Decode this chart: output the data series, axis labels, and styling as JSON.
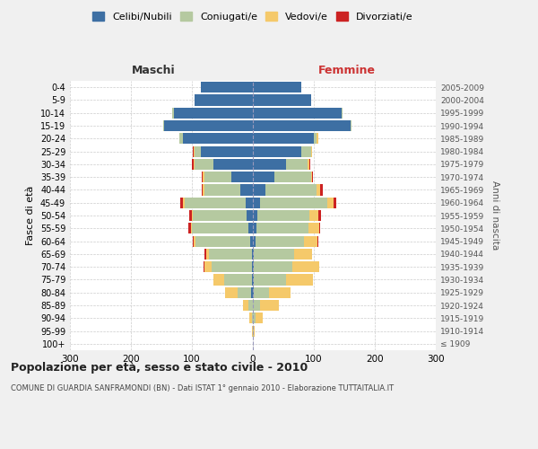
{
  "age_groups": [
    "100+",
    "95-99",
    "90-94",
    "85-89",
    "80-84",
    "75-79",
    "70-74",
    "65-69",
    "60-64",
    "55-59",
    "50-54",
    "45-49",
    "40-44",
    "35-39",
    "30-34",
    "25-29",
    "20-24",
    "15-19",
    "10-14",
    "5-9",
    "0-4"
  ],
  "birth_years": [
    "≤ 1909",
    "1910-1914",
    "1915-1919",
    "1920-1924",
    "1925-1929",
    "1930-1934",
    "1935-1939",
    "1940-1944",
    "1945-1949",
    "1950-1954",
    "1955-1959",
    "1960-1964",
    "1965-1969",
    "1970-1974",
    "1975-1979",
    "1980-1984",
    "1985-1989",
    "1990-1994",
    "1995-1999",
    "2000-2004",
    "2005-2009"
  ],
  "male": {
    "celibi": [
      0,
      0,
      0,
      0,
      3,
      2,
      2,
      2,
      4,
      8,
      10,
      12,
      20,
      35,
      65,
      85,
      115,
      145,
      130,
      95,
      85
    ],
    "coniugati": [
      0,
      0,
      2,
      8,
      22,
      45,
      65,
      70,
      90,
      92,
      88,
      100,
      60,
      45,
      30,
      10,
      5,
      2,
      2,
      0,
      0
    ],
    "vedovi": [
      0,
      1,
      4,
      8,
      20,
      18,
      12,
      5,
      3,
      2,
      2,
      2,
      2,
      2,
      2,
      2,
      0,
      0,
      0,
      0,
      0
    ],
    "divorziati": [
      0,
      0,
      0,
      0,
      0,
      0,
      2,
      2,
      2,
      4,
      4,
      5,
      2,
      2,
      3,
      2,
      0,
      0,
      0,
      0,
      0
    ]
  },
  "female": {
    "nubili": [
      0,
      0,
      0,
      0,
      2,
      2,
      2,
      2,
      4,
      6,
      8,
      12,
      20,
      35,
      55,
      80,
      100,
      160,
      145,
      95,
      80
    ],
    "coniugate": [
      0,
      1,
      4,
      12,
      25,
      52,
      62,
      65,
      80,
      85,
      85,
      110,
      85,
      60,
      35,
      15,
      5,
      2,
      2,
      0,
      0
    ],
    "vedove": [
      0,
      2,
      12,
      30,
      35,
      45,
      45,
      30,
      22,
      18,
      15,
      10,
      5,
      2,
      2,
      2,
      2,
      0,
      0,
      0,
      0
    ],
    "divorziate": [
      0,
      0,
      0,
      0,
      0,
      0,
      0,
      0,
      2,
      2,
      4,
      5,
      5,
      2,
      2,
      0,
      0,
      0,
      0,
      0,
      0
    ]
  },
  "colors": {
    "celibi": "#3d6fa3",
    "coniugati": "#b5c9a0",
    "vedovi": "#f5c96a",
    "divorziati": "#cc2222"
  },
  "xlim": 300,
  "title": "Popolazione per età, sesso e stato civile - 2010",
  "subtitle": "COMUNE DI GUARDIA SANFRAMONDI (BN) - Dati ISTAT 1° gennaio 2010 - Elaborazione TUTTAITALIA.IT",
  "ylabel": "Fasce di età",
  "ylabel_right": "Anni di nascita",
  "legend_labels": [
    "Celibi/Nubili",
    "Coniugati/e",
    "Vedovi/e",
    "Divorziati/e"
  ],
  "bg_color": "#f0f0f0",
  "plot_bg": "#ffffff",
  "grid_color": "#cccccc"
}
